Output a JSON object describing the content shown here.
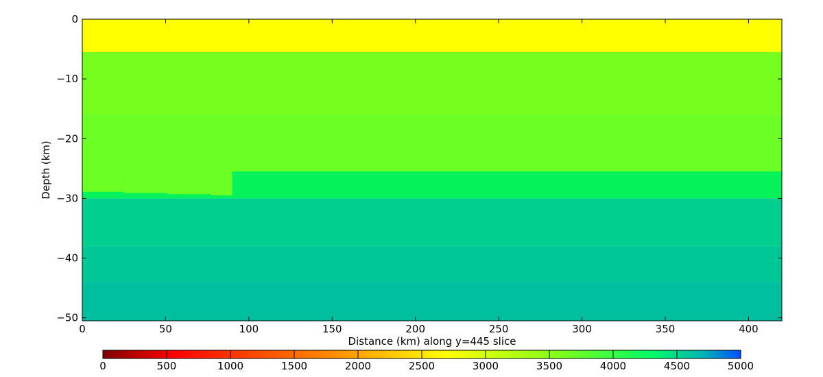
{
  "chart_data": [
    {
      "type": "heatmap",
      "xlabel": "Distance (km) along y=445 slice",
      "ylabel": "Depth (km)",
      "xlim": [
        0,
        420
      ],
      "ylim": [
        -50.5,
        0
      ],
      "x_ticks": [
        0,
        50,
        100,
        150,
        200,
        250,
        300,
        350,
        400
      ],
      "y_ticks": [
        0,
        -10,
        -20,
        -30,
        -40,
        -50
      ],
      "grid": false,
      "colormap": "jet_r",
      "layers": [
        {
          "depth_top": 0,
          "depth_bottom": -5.5,
          "value": 2550,
          "color": "#ffff00"
        },
        {
          "depth_top": -5.5,
          "depth_bottom": -16,
          "value": 3650,
          "color": "#76ff1e"
        },
        {
          "depth_top": -16,
          "depth_bottom": -26,
          "value": 3750,
          "color": "#6cff26"
        },
        {
          "depth_top": -26,
          "depth_bottom": -30,
          "value": 4250,
          "color": "#05f25a"
        },
        {
          "depth_top": -30,
          "depth_bottom": -38,
          "value": 4500,
          "color": "#00cf8f"
        },
        {
          "depth_top": -38,
          "depth_bottom": -44,
          "value": 4560,
          "color": "#00c796"
        },
        {
          "depth_top": -44,
          "depth_bottom": -50.5,
          "value": 4620,
          "color": "#00bf9f"
        }
      ],
      "moho_boundary": [
        {
          "x_start": 0,
          "x_end": 25,
          "depth": -28.9
        },
        {
          "x_start": 25,
          "x_end": 51,
          "depth": -29.1
        },
        {
          "x_start": 51,
          "x_end": 77,
          "depth": -29.3
        },
        {
          "x_start": 77,
          "x_end": 90,
          "depth": -29.5
        },
        {
          "x_start": 90,
          "x_end": 420,
          "depth": -25.5
        }
      ],
      "colorbar": {
        "orientation": "horizontal",
        "placement": "bottom",
        "min": 0,
        "max": 5000,
        "ticks": [
          0,
          500,
          1000,
          1500,
          2000,
          2500,
          3000,
          3500,
          4000,
          4500,
          5000
        ],
        "stops": [
          {
            "value": 0,
            "color": "#7f0000"
          },
          {
            "value": 550,
            "color": "#ff0000"
          },
          {
            "value": 1800,
            "color": "#ff8c00"
          },
          {
            "value": 2700,
            "color": "#ffff00"
          },
          {
            "value": 3600,
            "color": "#7dff1a"
          },
          {
            "value": 4300,
            "color": "#00ff66"
          },
          {
            "value": 4700,
            "color": "#00b4b4"
          },
          {
            "value": 5000,
            "color": "#0050ff"
          }
        ]
      }
    }
  ]
}
